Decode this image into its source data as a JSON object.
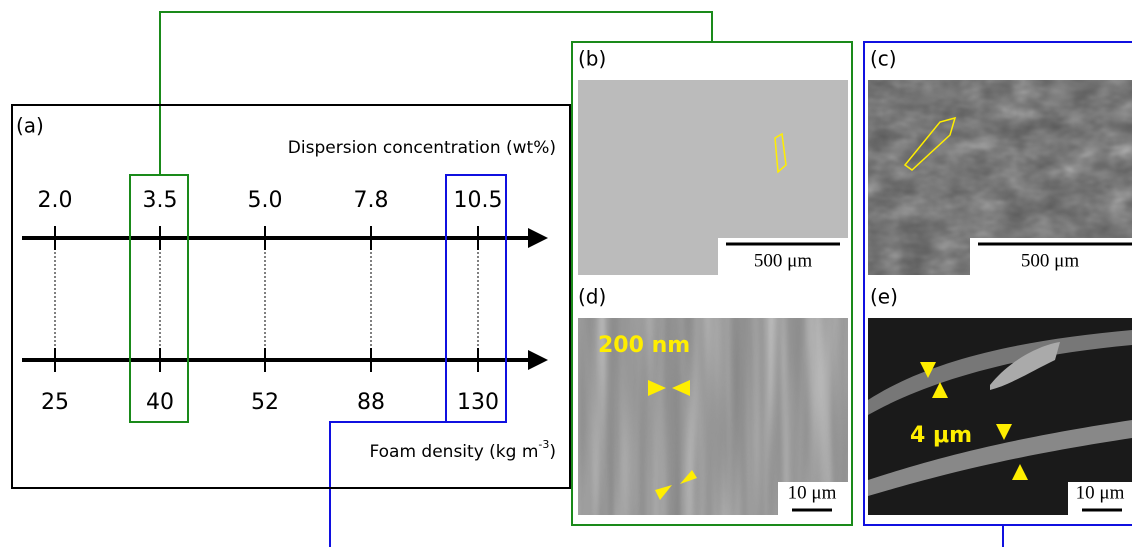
{
  "panel_a": {
    "label": "(a)",
    "top_axis_label": "Dispersion concentration (wt%)",
    "top_values": [
      "2.0",
      "3.5",
      "5.0",
      "7.8",
      "10.5"
    ],
    "bottom_values": [
      "25",
      "40",
      "52",
      "88",
      "130"
    ],
    "bottom_axis_label": {
      "text": "Foam density (kg m",
      "superscript": "-3",
      "suffix": ")"
    }
  },
  "panel_b": {
    "label": "(b)",
    "scale_bar": "500 μm"
  },
  "panel_c": {
    "label": "(c)",
    "scale_bar": "500 μm"
  },
  "panel_d": {
    "label": "(d)",
    "annotation": "200 nm",
    "scale_bar": "10 μm"
  },
  "panel_e": {
    "label": "(e)",
    "annotation": "4 μm",
    "scale_bar": "10 μm"
  }
}
